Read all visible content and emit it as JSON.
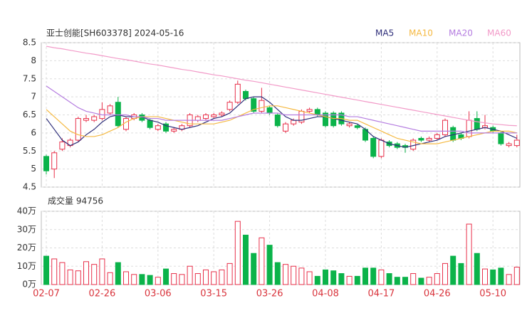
{
  "chart_data": {
    "type": "candlestick",
    "title": "亚士创能[SH603378] 2024-05-16",
    "categories": [
      "02-07",
      null,
      null,
      null,
      null,
      null,
      null,
      "02-26",
      null,
      null,
      null,
      null,
      null,
      null,
      "03-06",
      null,
      null,
      null,
      null,
      null,
      null,
      "03-15",
      null,
      null,
      null,
      null,
      null,
      null,
      "03-26",
      null,
      null,
      null,
      null,
      null,
      null,
      "04-08",
      null,
      null,
      null,
      null,
      null,
      null,
      "04-17",
      null,
      null,
      null,
      null,
      null,
      null,
      "04-26",
      null,
      null,
      null,
      null,
      null,
      null,
      "05-10",
      null,
      null,
      null
    ],
    "open": [
      5.35,
      5.0,
      5.55,
      5.65,
      5.8,
      6.35,
      6.35,
      6.4,
      6.55,
      6.85,
      6.1,
      6.4,
      6.5,
      6.35,
      6.1,
      6.25,
      6.05,
      6.1,
      6.2,
      6.35,
      6.4,
      6.45,
      6.5,
      6.65,
      6.85,
      7.15,
      6.95,
      6.6,
      6.7,
      6.5,
      6.05,
      6.25,
      6.3,
      6.6,
      6.65,
      6.55,
      6.55,
      6.55,
      6.2,
      6.2,
      6.1,
      5.85,
      5.35,
      5.75,
      5.7,
      5.65,
      5.55,
      5.85,
      5.8,
      5.85,
      5.95,
      6.15,
      5.95,
      5.9,
      6.4,
      6.15,
      6.15,
      6.0,
      5.65,
      5.65
    ],
    "high": [
      5.4,
      5.5,
      5.85,
      5.85,
      6.45,
      6.5,
      6.5,
      6.85,
      6.8,
      7.0,
      6.45,
      6.55,
      6.55,
      6.4,
      6.25,
      6.3,
      6.15,
      6.25,
      6.55,
      6.5,
      6.55,
      6.55,
      6.6,
      6.9,
      7.45,
      7.2,
      7.0,
      7.25,
      6.75,
      6.55,
      6.3,
      6.4,
      6.65,
      6.7,
      6.7,
      6.6,
      6.6,
      6.6,
      6.3,
      6.25,
      6.15,
      5.9,
      5.85,
      5.8,
      5.75,
      5.7,
      5.85,
      5.9,
      5.9,
      6.0,
      6.4,
      6.2,
      6.0,
      6.6,
      6.6,
      6.5,
      6.2,
      6.05,
      5.75,
      5.95
    ],
    "low": [
      4.85,
      4.75,
      5.5,
      5.6,
      5.75,
      6.3,
      6.3,
      6.35,
      6.5,
      6.15,
      6.05,
      6.35,
      6.3,
      6.1,
      6.05,
      6.0,
      6.0,
      6.05,
      6.15,
      6.3,
      6.35,
      6.4,
      6.45,
      6.6,
      6.8,
      6.9,
      6.55,
      6.55,
      6.5,
      6.15,
      6.0,
      6.2,
      6.25,
      6.55,
      6.45,
      6.15,
      6.15,
      6.2,
      6.15,
      6.1,
      5.75,
      5.3,
      5.3,
      5.6,
      5.55,
      5.45,
      5.5,
      5.75,
      5.75,
      5.8,
      5.9,
      5.75,
      5.8,
      5.85,
      6.05,
      6.1,
      6.0,
      5.65,
      5.6,
      5.6
    ],
    "close": [
      4.95,
      5.45,
      5.75,
      5.8,
      6.4,
      6.4,
      6.45,
      6.65,
      6.75,
      6.2,
      6.4,
      6.5,
      6.35,
      6.15,
      6.2,
      6.05,
      6.1,
      6.2,
      6.5,
      6.45,
      6.5,
      6.5,
      6.55,
      6.85,
      7.35,
      6.95,
      6.6,
      6.9,
      6.55,
      6.2,
      6.25,
      6.35,
      6.6,
      6.65,
      6.5,
      6.2,
      6.2,
      6.25,
      6.25,
      6.15,
      5.8,
      5.35,
      5.8,
      5.65,
      5.6,
      5.6,
      5.8,
      5.8,
      5.85,
      5.95,
      6.35,
      5.8,
      5.85,
      6.35,
      6.1,
      6.2,
      6.05,
      5.7,
      5.7,
      5.8
    ],
    "up_color": "#e8304a",
    "down_color": "#0bb34a",
    "ylim": [
      4.5,
      8.5
    ],
    "yticks": [
      4.5,
      5,
      5.5,
      6,
      6.5,
      7,
      7.5,
      8,
      8.5
    ],
    "grid": true,
    "series": [
      {
        "name": "MA5",
        "color": "#2f2f7a",
        "values": [
          6.4,
          6.1,
          5.8,
          5.65,
          5.75,
          5.95,
          6.1,
          6.3,
          6.45,
          6.5,
          6.45,
          6.45,
          6.45,
          6.35,
          6.3,
          6.2,
          6.15,
          6.1,
          6.15,
          6.2,
          6.3,
          6.4,
          6.45,
          6.55,
          6.75,
          6.95,
          7.0,
          7.0,
          6.85,
          6.65,
          6.45,
          6.35,
          6.35,
          6.4,
          6.45,
          6.45,
          6.4,
          6.35,
          6.3,
          6.25,
          6.1,
          5.9,
          5.8,
          5.7,
          5.65,
          5.6,
          5.65,
          5.7,
          5.75,
          5.8,
          5.9,
          5.95,
          6.0,
          6.05,
          6.1,
          6.15,
          6.1,
          6.05,
          5.95,
          5.85
        ]
      },
      {
        "name": "MA10",
        "color": "#f5b942",
        "values": [
          6.65,
          6.45,
          6.25,
          6.05,
          5.95,
          5.9,
          5.9,
          5.95,
          6.05,
          6.15,
          6.3,
          6.4,
          6.45,
          6.45,
          6.45,
          6.4,
          6.35,
          6.3,
          6.25,
          6.25,
          6.25,
          6.25,
          6.3,
          6.35,
          6.45,
          6.55,
          6.65,
          6.7,
          6.75,
          6.75,
          6.7,
          6.65,
          6.6,
          6.55,
          6.5,
          6.45,
          6.4,
          6.4,
          6.35,
          6.35,
          6.25,
          6.15,
          6.05,
          5.95,
          5.85,
          5.8,
          5.75,
          5.7,
          5.7,
          5.7,
          5.75,
          5.8,
          5.85,
          5.9,
          5.95,
          6.0,
          6.05,
          6.05,
          6.05,
          6.0
        ]
      },
      {
        "name": "MA20",
        "color": "#b57de0",
        "values": [
          7.3,
          7.15,
          7.0,
          6.85,
          6.7,
          6.6,
          6.55,
          6.5,
          6.5,
          6.5,
          6.5,
          6.45,
          6.45,
          6.4,
          6.4,
          6.35,
          6.35,
          6.35,
          6.35,
          6.35,
          6.35,
          6.35,
          6.35,
          6.4,
          6.45,
          6.5,
          6.55,
          6.55,
          6.55,
          6.55,
          6.5,
          6.5,
          6.5,
          6.5,
          6.5,
          6.5,
          6.5,
          6.5,
          6.45,
          6.45,
          6.4,
          6.35,
          6.3,
          6.25,
          6.2,
          6.15,
          6.1,
          6.05,
          6.05,
          6.05,
          6.05,
          6.05,
          6.05,
          6.0,
          6.0,
          6.0,
          6.0,
          6.0,
          6.0,
          6.0
        ]
      },
      {
        "name": "MA60",
        "color": "#f29ac8",
        "values": [
          8.4,
          8.36,
          8.33,
          8.29,
          8.25,
          8.21,
          8.18,
          8.14,
          8.1,
          8.06,
          8.03,
          7.99,
          7.95,
          7.91,
          7.88,
          7.84,
          7.8,
          7.76,
          7.73,
          7.69,
          7.65,
          7.61,
          7.58,
          7.54,
          7.5,
          7.46,
          7.43,
          7.39,
          7.35,
          7.31,
          7.27,
          7.23,
          7.19,
          7.15,
          7.11,
          7.07,
          7.03,
          6.99,
          6.95,
          6.91,
          6.87,
          6.83,
          6.79,
          6.75,
          6.71,
          6.67,
          6.63,
          6.59,
          6.55,
          6.51,
          6.47,
          6.43,
          6.39,
          6.35,
          6.31,
          6.28,
          6.25,
          6.23,
          6.21,
          6.2
        ]
      }
    ],
    "volume": {
      "title": "成交量 94756",
      "values": [
        15.5,
        14,
        12,
        8,
        7.5,
        12.5,
        11,
        14,
        6.5,
        12,
        7,
        5.5,
        5.5,
        5,
        4,
        8.5,
        6,
        5.5,
        10,
        6,
        8,
        7,
        8,
        11.5,
        34.5,
        27,
        17,
        25.5,
        21.5,
        12,
        11,
        10,
        9,
        7,
        4.5,
        8,
        7.5,
        6,
        4.5,
        4.5,
        9,
        9,
        8,
        6,
        4,
        4,
        6,
        3.5,
        4,
        6,
        11.5,
        15.5,
        11.5,
        33,
        17,
        8.5,
        8,
        9,
        5.5,
        9.5
      ],
      "ylim": [
        0,
        40
      ],
      "yticks": [
        {
          "value": 0,
          "label": "0万"
        },
        {
          "value": 10,
          "label": "10万"
        },
        {
          "value": 20,
          "label": "20万"
        },
        {
          "value": 30,
          "label": "30万"
        },
        {
          "value": 40,
          "label": "40万"
        }
      ]
    }
  }
}
